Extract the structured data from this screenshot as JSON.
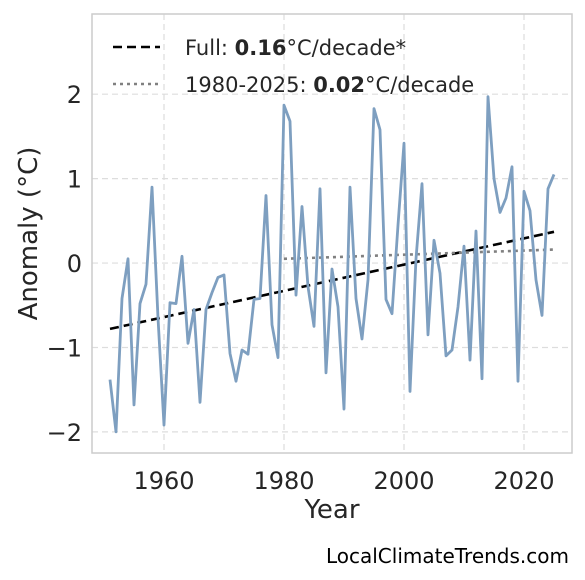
{
  "chart_data": {
    "type": "line",
    "title": "",
    "xlabel": "Year",
    "ylabel": "Anomaly (°C)",
    "xlim": [
      1948,
      2028
    ],
    "ylim": [
      -2.25,
      2.95
    ],
    "xticks": [
      1960,
      1980,
      2000,
      2020
    ],
    "yticks": [
      -2,
      -1,
      0,
      1,
      2
    ],
    "ytick_labels": [
      "−2",
      "−1",
      "0",
      "1",
      "2"
    ],
    "grid": true,
    "legend_position": "top-left",
    "colors": {
      "series": "#7e9fc0",
      "full_trend": "#000000",
      "recent_trend": "#808080",
      "grid": "#dddddd",
      "frame": "#cccccc"
    },
    "series": [
      {
        "x": [
          1951,
          1952,
          1953,
          1954,
          1955,
          1956,
          1957,
          1958,
          1959,
          1960,
          1961,
          1962,
          1963,
          1964,
          1965,
          1966,
          1967,
          1968,
          1969,
          1970,
          1971,
          1972,
          1973,
          1974,
          1975,
          1976,
          1977,
          1978,
          1979,
          1980,
          1981,
          1982,
          1983,
          1984,
          1985,
          1986,
          1987,
          1988,
          1989,
          1990,
          1991,
          1992,
          1993,
          1994,
          1995,
          1996,
          1997,
          1998,
          1999,
          2000,
          2001,
          2002,
          2003,
          2004,
          2005,
          2006,
          2007,
          2008,
          2009,
          2010,
          2011,
          2012,
          2013,
          2014,
          2015,
          2016,
          2017,
          2018,
          2019,
          2020,
          2021,
          2022,
          2023,
          2024,
          2025
        ],
        "values": [
          -1.38,
          -2.0,
          -0.42,
          0.05,
          -1.68,
          -0.48,
          -0.25,
          0.9,
          -0.65,
          -1.92,
          -0.47,
          -0.48,
          0.08,
          -0.95,
          -0.55,
          -1.65,
          -0.55,
          -0.35,
          -0.17,
          -0.14,
          -1.07,
          -1.4,
          -1.03,
          -1.08,
          -0.43,
          -0.42,
          0.8,
          -0.73,
          -1.12,
          1.87,
          1.68,
          -0.38,
          0.67,
          -0.28,
          -0.75,
          0.88,
          -1.3,
          -0.07,
          -0.52,
          -1.73,
          0.9,
          -0.42,
          -0.9,
          -0.2,
          1.83,
          1.58,
          -0.43,
          -0.6,
          0.45,
          1.42,
          -1.52,
          0.05,
          0.94,
          -0.85,
          0.27,
          -0.12,
          -1.1,
          -1.03,
          -0.52,
          0.2,
          -1.15,
          0.38,
          -1.37,
          1.97,
          1.0,
          0.6,
          0.77,
          1.14,
          -1.4,
          0.85,
          0.62,
          -0.2,
          -0.62,
          0.88,
          1.05
        ]
      }
    ],
    "trends": [
      {
        "legend_label": "Full: ",
        "legend_value": "0.16",
        "legend_suffix": "°C/decade*",
        "style": "dashed",
        "x": [
          1951,
          2025
        ],
        "y": [
          -0.78,
          0.37
        ]
      },
      {
        "legend_label": "1980-2025: ",
        "legend_value": "0.02",
        "legend_suffix": "°C/decade",
        "style": "dotted",
        "x": [
          1980,
          2025
        ],
        "y": [
          0.05,
          0.16
        ]
      }
    ]
  },
  "credit": "LocalClimateTrends.com"
}
